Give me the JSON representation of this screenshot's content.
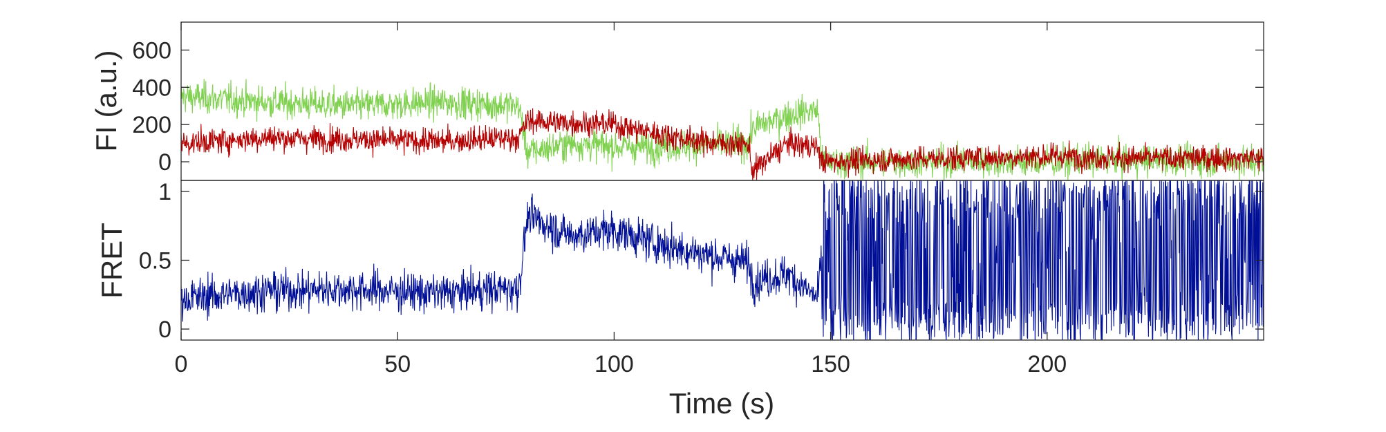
{
  "chart_data": [
    {
      "type": "line",
      "ylabel": "FI (a.u.)",
      "xlim": [
        0,
        250
      ],
      "ylim": [
        -100,
        750
      ],
      "xticks": [
        0,
        50,
        100,
        150,
        200
      ],
      "yticks": [
        0,
        200,
        400,
        600
      ],
      "ytick_labels": [
        "0",
        "200",
        "400",
        "600"
      ],
      "colors": {
        "donor": "#7fd14f",
        "acceptor": "#b40000"
      },
      "series": [
        {
          "color": "#7fd14f",
          "x": [
            0,
            20,
            40,
            60,
            78,
            80,
            90,
            100,
            110,
            120,
            131,
            132,
            140,
            147,
            148,
            160,
            180,
            200,
            220,
            250
          ],
          "values": [
            350,
            320,
            300,
            320,
            300,
            50,
            100,
            80,
            80,
            90,
            100,
            180,
            250,
            280,
            0,
            0,
            0,
            0,
            10,
            0
          ]
        },
        {
          "color": "#b40000",
          "x": [
            0,
            20,
            40,
            60,
            78,
            80,
            90,
            100,
            110,
            120,
            131,
            132,
            140,
            147,
            148,
            160,
            180,
            200,
            220,
            250
          ],
          "values": [
            100,
            130,
            120,
            110,
            130,
            220,
            210,
            200,
            150,
            110,
            90,
            -50,
            100,
            80,
            0,
            10,
            20,
            30,
            20,
            20
          ]
        }
      ]
    },
    {
      "type": "line",
      "xlabel": "Time (s)",
      "ylabel": "FRET",
      "xlim": [
        0,
        250
      ],
      "ylim": [
        -0.08,
        1.08
      ],
      "xticks": [
        0,
        50,
        100,
        150,
        200
      ],
      "xtick_labels": [
        "0",
        "50",
        "100",
        "150",
        "200"
      ],
      "yticks": [
        0,
        0.5,
        1
      ],
      "ytick_labels": [
        "0",
        "0.5",
        "1"
      ],
      "colors": {
        "fret": "#000f96"
      },
      "series": [
        {
          "color": "#000f96",
          "x": [
            0,
            20,
            40,
            60,
            78,
            80,
            90,
            100,
            110,
            120,
            131,
            132,
            140,
            147,
            148,
            160,
            180,
            200,
            220,
            250
          ],
          "values": [
            0.22,
            0.28,
            0.29,
            0.26,
            0.3,
            0.82,
            0.68,
            0.72,
            0.62,
            0.55,
            0.48,
            0.35,
            0.4,
            0.22,
            0.55,
            0.5,
            0.5,
            0.5,
            0.5,
            0.5
          ]
        }
      ]
    }
  ]
}
